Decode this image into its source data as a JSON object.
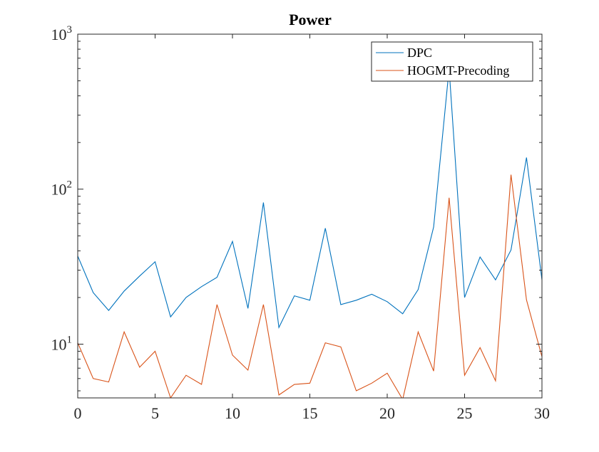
{
  "chart_data": {
    "type": "line",
    "title": "Power",
    "xlabel": "",
    "ylabel": "",
    "yscale": "log",
    "xlim": [
      0,
      30
    ],
    "ylim": [
      4.5,
      1000
    ],
    "grid": false,
    "legend_position": "top-right",
    "x_ticks": [
      0,
      5,
      10,
      15,
      20,
      25,
      30
    ],
    "x_tick_labels": [
      "0",
      "5",
      "10",
      "15",
      "20",
      "25",
      "30"
    ],
    "y_ticks": [
      {
        "value": 10,
        "base": "10",
        "exp": "1"
      },
      {
        "value": 100,
        "base": "10",
        "exp": "2"
      },
      {
        "value": 1000,
        "base": "10",
        "exp": "3"
      }
    ],
    "x": [
      0,
      1,
      2,
      3,
      4,
      5,
      6,
      7,
      8,
      9,
      10,
      11,
      12,
      13,
      14,
      15,
      16,
      17,
      18,
      19,
      20,
      21,
      22,
      23,
      24,
      25,
      26,
      27,
      28,
      29,
      30
    ],
    "series": [
      {
        "name": "DPC",
        "color": "#0072BD",
        "values": [
          37,
          21.5,
          16.5,
          22,
          27.5,
          34,
          15,
          20,
          23.5,
          27,
          46,
          17,
          82,
          12.8,
          20.5,
          19.2,
          56,
          18,
          19.2,
          21,
          18.8,
          15.7,
          22.5,
          57,
          600,
          20,
          36.5,
          26,
          40.5,
          160,
          26
        ]
      },
      {
        "name": "HOGMT-Precoding",
        "color": "#D95319",
        "values": [
          10.2,
          6,
          5.7,
          12,
          7.1,
          9,
          4.5,
          6.3,
          5.5,
          18,
          8.5,
          6.8,
          18,
          4.7,
          5.5,
          5.6,
          10.2,
          9.6,
          5,
          5.6,
          6.5,
          4.4,
          12,
          6.7,
          88,
          6.3,
          9.5,
          5.8,
          124,
          19.3,
          8.3
        ]
      }
    ]
  }
}
